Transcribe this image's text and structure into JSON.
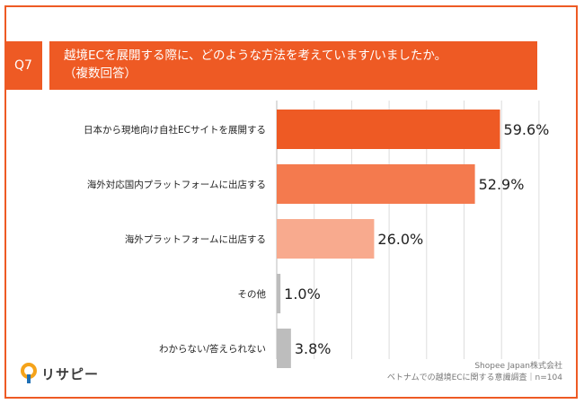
{
  "question": {
    "label": "Q7",
    "line1": "越境ECを展開する際に、どのような方法を考えています/いましたか。",
    "line2": "（複数回答）"
  },
  "logo": {
    "text": "リサピー",
    "icon": "pin-icon"
  },
  "source": {
    "company": "Shopee Japan株式会社",
    "survey": "ベトナムでの越境ECに関する意識調査｜n=104"
  },
  "colors": {
    "accent": "#ee5a24",
    "frame": "#ee5a24",
    "grid": "#dddddd",
    "axis": "#bbbbbb"
  },
  "chart_data": {
    "type": "bar",
    "orientation": "horizontal",
    "categories": [
      "日本から現地向け自社ECサイトを展開する",
      "海外対応国内プラットフォームに出店する",
      "海外プラットフォームに出店する",
      "その他",
      "わからない/答えられない"
    ],
    "values": [
      59.6,
      52.9,
      26.0,
      1.0,
      3.8
    ],
    "value_labels": [
      "59.6%",
      "52.9%",
      "26.0%",
      "1.0%",
      "3.8%"
    ],
    "bar_colors": [
      "#ee5a24",
      "#f47a4e",
      "#f8aa8e",
      "#bdbdbd",
      "#bdbdbd"
    ],
    "xlim": [
      0,
      100
    ],
    "grid": true,
    "title": "",
    "xlabel": "",
    "ylabel": ""
  }
}
